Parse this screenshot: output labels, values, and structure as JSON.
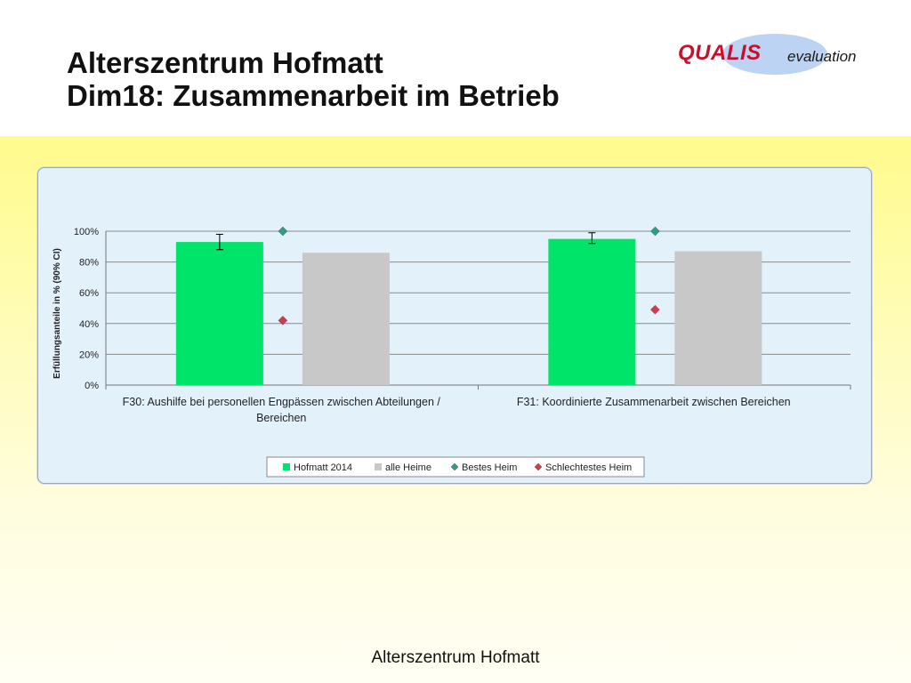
{
  "title": {
    "line1": "Alterszentrum Hofmatt",
    "line2": "Dim18: Zusammenarbeit im Betrieb"
  },
  "logo": {
    "word1": "QUALIS",
    "word2": "evaluation"
  },
  "footer": "Alterszentrum Hofmatt",
  "colors": {
    "hofmatt": "#00e46a",
    "alle_heime": "#c8c8c8",
    "bestes": "#2e9d87",
    "schlechtestes": "#d43a4c"
  },
  "chart_data": {
    "type": "bar",
    "ylabel": "Erfüllungsanteile in % (90% CI)",
    "ylim": [
      0,
      100
    ],
    "yticks": [
      "0%",
      "20%",
      "40%",
      "60%",
      "80%",
      "100%"
    ],
    "grid": true,
    "legend_position": "bottom",
    "categories": [
      [
        "F30: Aushilfe bei personellen Engpässen zwischen Abteilungen /",
        "Bereichen"
      ],
      [
        "F31: Koordinierte Zusammenarbeit zwischen Bereichen"
      ]
    ],
    "series": [
      {
        "name": "Hofmatt 2014",
        "kind": "bar",
        "values": [
          93,
          95
        ],
        "ci_low": [
          88,
          92
        ],
        "ci_high": [
          98,
          99
        ]
      },
      {
        "name": "alle Heime",
        "kind": "bar",
        "values": [
          86,
          87
        ]
      },
      {
        "name": "Bestes Heim",
        "kind": "marker",
        "values": [
          100,
          100
        ]
      },
      {
        "name": "Schlechtestes Heim",
        "kind": "marker",
        "values": [
          42,
          49
        ]
      }
    ]
  }
}
